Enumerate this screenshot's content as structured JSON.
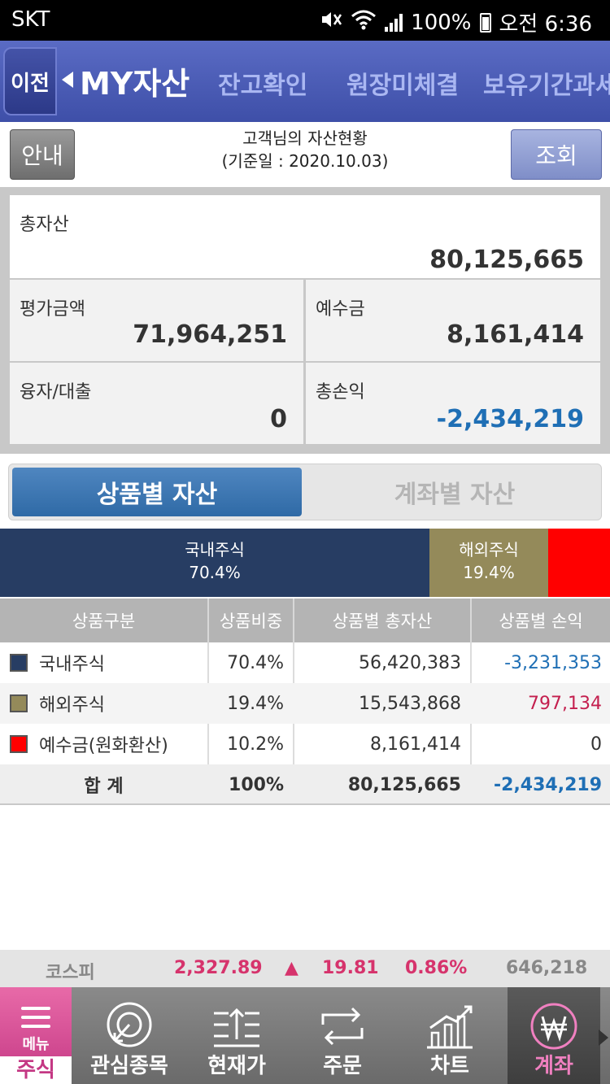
{
  "status_bar": {
    "carrier": "SKT",
    "battery": "100%",
    "time": "오전 6:36"
  },
  "header": {
    "back_label": "이전",
    "title": "MY자산",
    "tabs": [
      {
        "label": "잔고확인"
      },
      {
        "label": "원장미체결"
      },
      {
        "label": "보유기간과세"
      }
    ]
  },
  "info_bar": {
    "guide_label": "안내",
    "heading": "고객님의 자산현황",
    "date_line": "(기준일 : 2020.10.03)",
    "query_label": "조회"
  },
  "summary": {
    "total_assets": {
      "label": "총자산",
      "value": "80,125,665"
    },
    "valuation": {
      "label": "평가금액",
      "value": "71,964,251"
    },
    "deposit": {
      "label": "예수금",
      "value": "8,161,414"
    },
    "loan": {
      "label": "융자/대출",
      "value": "0"
    },
    "total_pnl": {
      "label": "총손익",
      "value": "-2,434,219"
    }
  },
  "segment": {
    "active": "상품별 자산",
    "inactive": "계좌별 자산"
  },
  "allocation_bar": [
    {
      "name": "국내주식",
      "pct_label": "70.4%",
      "fraction": 0.704,
      "color": "#273d63"
    },
    {
      "name": "해외주식",
      "pct_label": "19.4%",
      "fraction": 0.194,
      "color": "#948a5a"
    },
    {
      "name": "",
      "pct_label": "",
      "fraction": 0.102,
      "color": "#ff0000"
    }
  ],
  "table": {
    "headers": [
      "상품구분",
      "상품비중",
      "상품별 총자산",
      "상품별 손익"
    ],
    "rows": [
      {
        "name": "국내주식",
        "weight": "70.4%",
        "assets": "56,420,383",
        "pnl": "-3,231,353",
        "swatch": "#273d63",
        "pnl_color": "#1f6fb5"
      },
      {
        "name": "해외주식",
        "weight": "19.4%",
        "assets": "15,543,868",
        "pnl": "797,134",
        "swatch": "#948a5a",
        "pnl_color": "#c41f4e"
      },
      {
        "name": "예수금(원화환산)",
        "weight": "10.2%",
        "assets": "8,161,414",
        "pnl": "0",
        "swatch": "#ff0000",
        "pnl_color": "#333333"
      }
    ],
    "total": {
      "name": "합 계",
      "weight": "100%",
      "assets": "80,125,665",
      "pnl": "-2,434,219",
      "pnl_color": "#1f6fb5"
    }
  },
  "ticker": {
    "index_name": "코스피",
    "index_value": "2,327.89",
    "direction": "▲",
    "change": "19.81",
    "change_pct": "0.86%",
    "volume": "646,218"
  },
  "bottom_nav": {
    "menu_label": "메뉴",
    "items": [
      {
        "label": "주식",
        "icon": "menu-icon"
      },
      {
        "label": "관심종목",
        "icon": "watchlist-icon"
      },
      {
        "label": "현재가",
        "icon": "price-icon"
      },
      {
        "label": "주문",
        "icon": "order-icon"
      },
      {
        "label": "차트",
        "icon": "chart-icon"
      },
      {
        "label": "계좌",
        "icon": "won-icon"
      }
    ]
  },
  "colors": {
    "header_blue": "#3e4fa8",
    "segment_blue": "#2f6aa6",
    "negative": "#1f6fb5",
    "positive": "#c41f4e",
    "menu_pink": "#c43884"
  }
}
